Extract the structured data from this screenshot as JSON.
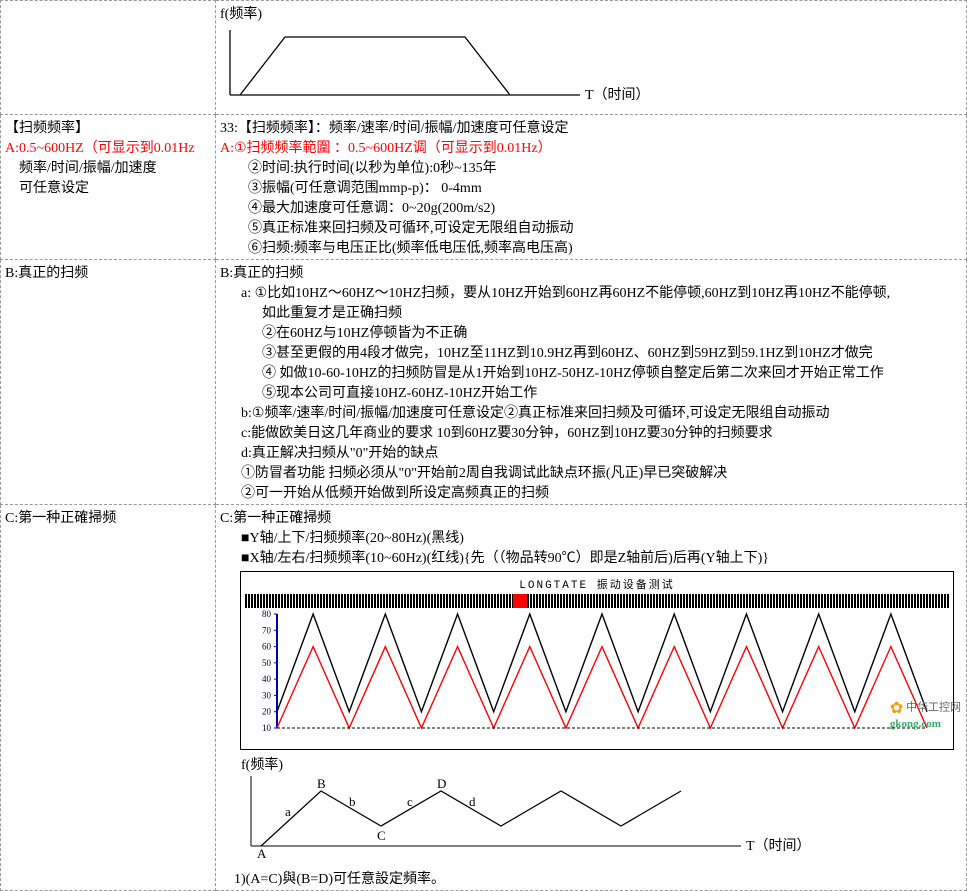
{
  "row1": {
    "top_label": "f(频率)",
    "right_label": "T（时间）",
    "trapezoid": {
      "stroke": "#000000",
      "stroke_width": 1.3
    }
  },
  "row2": {
    "left": {
      "title": "【扫频频率】",
      "red_line": "A:0.5~600HZ（可显示到0.01Hz",
      "l1": "频率/时间/振幅/加速度",
      "l2": "可任意设定"
    },
    "right": {
      "l1": "33:【扫频频率】：频率/速率/时间/振幅/加速度可任意设定",
      "red_line": "A:①扫频频率範圍 ：0.5~600HZ调（可显示到0.01Hz）",
      "l3": "②时间:执行时间(以秒为单位):0秒~135年",
      "l4": "③振幅(可任意调范围mmp-p)： 0-4mm",
      "l5": "④最大加速度可任意调：0~20g(200m/s2)",
      "l6": "⑤真正标准来回扫频及可循环,可设定无限组自动振动",
      "l7": "⑥扫频:频率与电压正比(频率低电压低,频率高电压高)"
    }
  },
  "row3": {
    "left": "B:真正的扫频",
    "right": {
      "l1": "B:真正的扫频",
      "l2": "a: ①比如10HZ～60HZ～10HZ扫频，要从10HZ开始到60HZ再60HZ不能停顿,60HZ到10HZ再10HZ不能停顿,",
      "l3": "如此重复才是正确扫频",
      "l4": "②在60HZ与10HZ停顿皆为不正确",
      "l5": "③甚至更假的用4段才做完，10HZ至11HZ到10.9HZ再到60HZ、60HZ到59HZ到59.1HZ到10HZ才做完",
      "l6": "④ 如做10-60-10HZ的扫频防冒是从1开始到10HZ-50HZ-10HZ停顿自整定后第二次来回才开始正常工作",
      "l7": "⑤现本公司可直接10HZ-60HZ-10HZ开始工作",
      "l8": "b:①频率/速率/时间/振幅/加速度可任意设定②真正标准来回扫频及可循环,可设定无限组自动振动",
      "l9": "c:能做欧美日这几年商业的要求 10到60HZ要30分钟，60HZ到10HZ要30分钟的扫频要求",
      "l10": "d:真正解决扫频从\"0\"开始的缺点",
      "l11": "①防冒者功能 扫频必须从\"0\"开始前2周自我调试此缺点环振(凡正)早已突破解决",
      "l12": "②可一开始从低频开始做到所设定高频真正的扫频"
    }
  },
  "row4": {
    "left": "C:第一种正確掃频",
    "right": {
      "l1": "C:第一种正確掃频",
      "l2": "■Y轴/上下/扫频频率(20~80Hz)(黑线)",
      "l3": "■X轴/左右/扫频频率(10~60Hz)(红线){先（（物品转90℃）即是Z轴前后)后再(Y轴上下)}",
      "chart": {
        "title": "LONGTATE  振动设备测试",
        "y_ticks": [
          "80",
          "70",
          "60",
          "50",
          "40",
          "30",
          "20",
          "10"
        ],
        "series_black": {
          "color": "#000000",
          "ymin": 20,
          "ymax": 80,
          "cycles": 9
        },
        "series_red": {
          "color": "#ff0000",
          "ymin": 10,
          "ymax": 60,
          "cycles": 9
        }
      },
      "bottom_label_f": "f(频率)",
      "bottom_label_t": "T（时间）",
      "pts": {
        "B": "B",
        "D": "D",
        "a": "a",
        "b": "b",
        "c": "c",
        "d": "d",
        "A": "A",
        "C": "C"
      },
      "footer": "1)(A=C)與(B=D)可任意設定頻率。"
    }
  },
  "logo": {
    "gk": "gkong.com",
    "cn": "中华工控网"
  }
}
